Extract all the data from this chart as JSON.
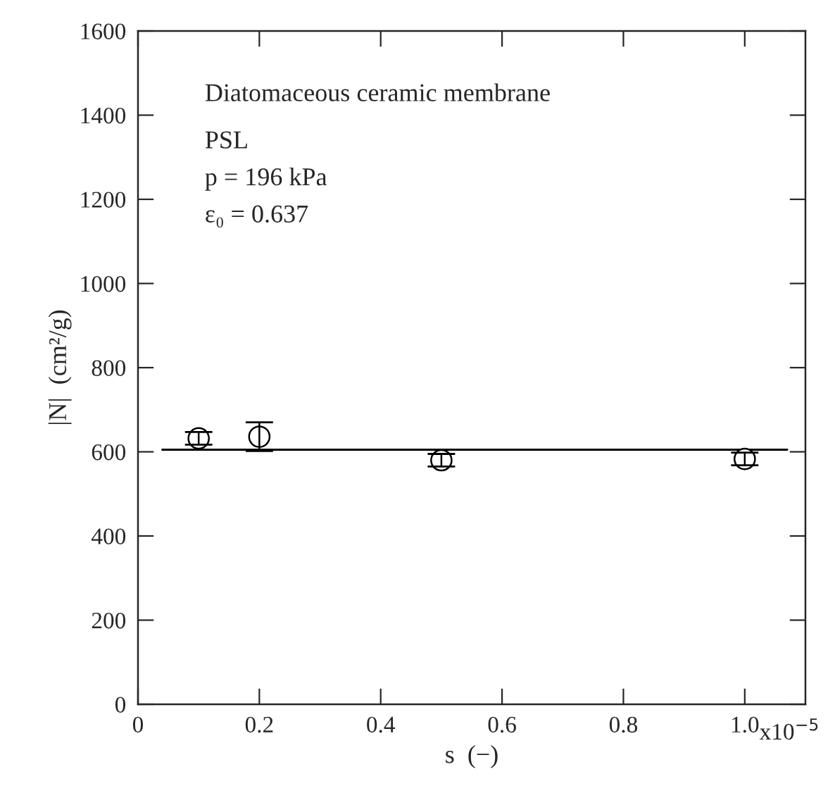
{
  "chart_data": {
    "type": "scatter",
    "xlabel": "s  (−)",
    "ylabel": "|N|  (cm²/g)",
    "xlim": [
      0,
      1.1
    ],
    "xticks": [
      0,
      0.2,
      0.4,
      0.6,
      0.8,
      {
        "value": 1.0,
        "label": "1.0"
      }
    ],
    "ylim": [
      0,
      1600
    ],
    "yticks": [
      0,
      200,
      400,
      600,
      800,
      1000,
      1200,
      1400,
      1600
    ],
    "grid": false,
    "series": [
      {
        "color": "#000000",
        "marker": "circle",
        "x": [
          0.1,
          0.2,
          0.5,
          1.0
        ],
        "values": [
          632,
          636,
          580,
          583
        ],
        "errors": [
          15,
          [
            602,
            670
          ],
          15,
          15
        ]
      },
      {
        "type": "line",
        "color": "#000000",
        "marker": "none",
        "x": [
          0.04,
          1.07
        ],
        "values": [
          605,
          605
        ],
        "line_style": "solid"
      }
    ],
    "annotations": [
      "Diatomaceous ceramic membrane",
      "PSL",
      "p = 196 kPa",
      "ε₀ = 0.637",
      "x10$^{−5}$"
    ]
  }
}
